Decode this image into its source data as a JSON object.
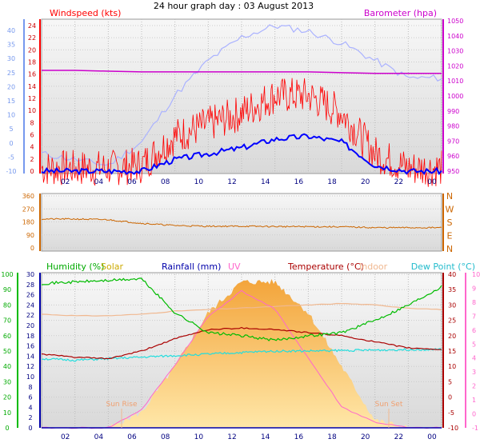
{
  "title": "24 hour graph day : 03 August 2013",
  "x_ticks": [
    "02",
    "04",
    "06",
    "08",
    "10",
    "12",
    "14",
    "16",
    "18",
    "20",
    "22",
    "00"
  ],
  "colors": {
    "windspeed": "#ff0000",
    "average_wind": "#0000ff",
    "wind_avg_line": "#aab2ff",
    "barometer": "#cc00cc",
    "direction": "#cc6600",
    "humidity": "#00bb00",
    "solar": "#ffaa22",
    "rainfall": "#0000aa",
    "uv": "#ff66cc",
    "temperature": "#aa0000",
    "indoor": "#f0b890",
    "dewpoint": "#22dddd",
    "left_axis_blue": "#7799ee",
    "panel_bg": "#f0f0f0"
  },
  "chart_data": [
    {
      "type": "line",
      "title": "",
      "series_labels": {
        "windspeed": "Windspeed (kts)",
        "barometer": "Barometer (hpa)"
      },
      "y_left_outer": {
        "range": [
          -10,
          40
        ],
        "ticks": [
          "40",
          "35",
          "30",
          "25",
          "20",
          "15",
          "10",
          "5",
          "0",
          "-5",
          "-10"
        ]
      },
      "y_left": {
        "range": [
          0,
          25
        ],
        "ticks": [
          "24",
          "22",
          "20",
          "18",
          "16",
          "14",
          "12",
          "10",
          "8",
          "6",
          "4",
          "2",
          "0"
        ]
      },
      "y_right": {
        "range": [
          950,
          1050
        ],
        "ticks": [
          "1050",
          "1040",
          "1030",
          "1020",
          "1010",
          "1000",
          "990",
          "980",
          "970",
          "960",
          "950"
        ]
      },
      "series": [
        {
          "key": "barometer",
          "values": [
            1017,
            1017,
            1016.5,
            1016,
            1016,
            1016,
            1016,
            1016,
            1016,
            1015.5,
            1015,
            1015,
            1015
          ]
        },
        {
          "key": "pale",
          "values": [
            3,
            2,
            1,
            5,
            13,
            19,
            23,
            25,
            24,
            22,
            19,
            16,
            16
          ]
        },
        {
          "key": "average",
          "values": [
            0,
            0,
            0,
            0,
            2,
            3,
            4,
            5.5,
            6,
            5,
            1,
            0,
            0
          ]
        },
        {
          "key": "gust",
          "values": [
            0.5,
            0.5,
            0.5,
            1,
            6,
            8,
            10,
            13,
            13,
            10,
            3,
            0.5,
            0.5
          ]
        }
      ]
    },
    {
      "type": "line",
      "title": "",
      "y_left": {
        "range": [
          0,
          360
        ],
        "ticks": [
          "360",
          "270",
          "180",
          "90",
          "0"
        ]
      },
      "compass": [
        "N",
        "W",
        "S",
        "E",
        "N"
      ],
      "series": [
        {
          "key": "direction",
          "values": [
            200,
            200,
            195,
            170,
            155,
            150,
            150,
            148,
            147,
            146,
            140,
            140,
            140
          ]
        }
      ]
    },
    {
      "type": "line",
      "title": "",
      "series_labels": {
        "humidity": "Humidity (%)",
        "solar": "Solar",
        "rainfall": "Rainfall (mm)",
        "uv": "UV",
        "temperature": "Temperature (°C)",
        "indoor": "Indoor",
        "dewpoint": "Dew Point (°C)"
      },
      "annotations": [
        "Sun Rise",
        "Sun Set"
      ],
      "y_hum": {
        "range": [
          0,
          100
        ],
        "ticks": [
          "100",
          "90",
          "80",
          "70",
          "60",
          "50",
          "40",
          "30",
          "20",
          "10",
          "0"
        ]
      },
      "y_rain": {
        "range": [
          0,
          30
        ],
        "ticks": [
          "30",
          "28",
          "26",
          "24",
          "22",
          "20",
          "18",
          "16",
          "14",
          "12",
          "10",
          "8",
          "6",
          "4",
          "2",
          "0"
        ]
      },
      "y_temp": {
        "range": [
          -10,
          40
        ],
        "ticks": [
          "40",
          "35",
          "30",
          "25",
          "20",
          "15",
          "10",
          "5",
          "0",
          "-5",
          "-10"
        ]
      },
      "y_uv": {
        "range": [
          -1,
          10
        ],
        "ticks": [
          "10",
          "9",
          "8",
          "7",
          "6",
          "5",
          "4",
          "3",
          "2",
          "1",
          "0",
          "-1"
        ]
      },
      "series": [
        {
          "key": "humidity",
          "values": [
            94,
            95,
            96,
            97,
            75,
            62,
            60,
            57,
            60,
            62,
            70,
            80,
            92
          ]
        },
        {
          "key": "temperature",
          "values": [
            14,
            13,
            12.5,
            15,
            19,
            22,
            22.5,
            22,
            21,
            20,
            18,
            16,
            15.5
          ]
        },
        {
          "key": "dewpoint",
          "values": [
            12.5,
            12,
            12.5,
            13,
            13.5,
            14,
            14.5,
            15,
            15,
            15.2,
            15.3,
            15.5,
            15.5
          ]
        },
        {
          "key": "indoor",
          "values": [
            27,
            26.5,
            26.5,
            27,
            28,
            28.5,
            29,
            29.5,
            30,
            30.5,
            30,
            29,
            28.5
          ]
        },
        {
          "key": "solar",
          "values": [
            0,
            0,
            0,
            10,
            40,
            75,
            95,
            95,
            75,
            40,
            5,
            0,
            0
          ]
        },
        {
          "key": "uv",
          "values": [
            -1,
            -1,
            -1,
            0.3,
            3.5,
            7,
            8.8,
            7.5,
            4,
            0.5,
            -0.6,
            -1,
            -1
          ]
        },
        {
          "key": "rainfall",
          "values": [
            0,
            0,
            0,
            0,
            0,
            0,
            0,
            0,
            0,
            0,
            0,
            0,
            0
          ]
        }
      ]
    }
  ]
}
